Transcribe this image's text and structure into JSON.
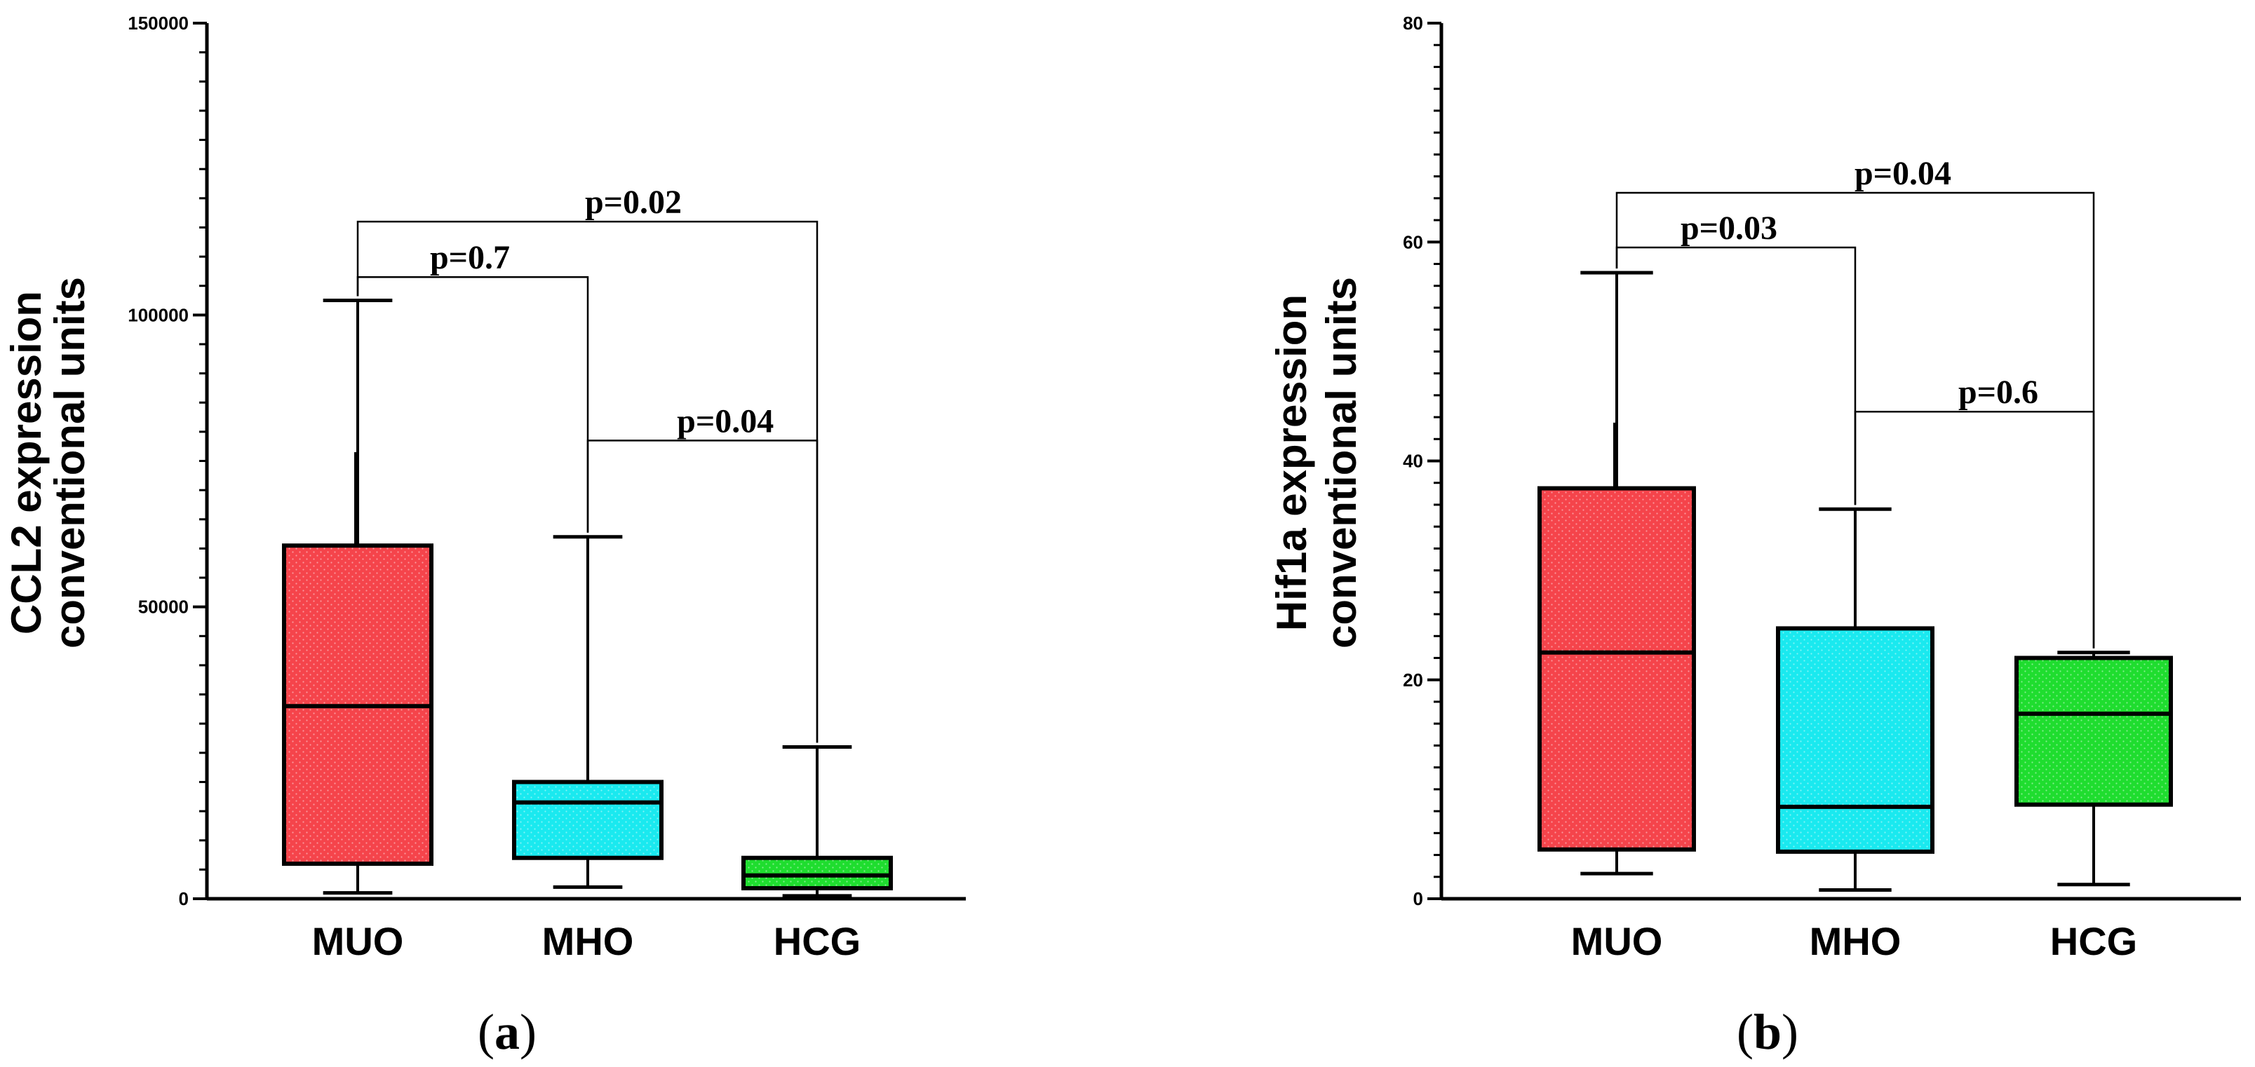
{
  "colors": {
    "MUO": "#f5444b",
    "MHO": "#1ae9ef",
    "HCG": "#1fdd2f",
    "dot": "#ffffff"
  },
  "chart_data": [
    {
      "type": "boxplot",
      "panel_label": "a",
      "ylabel_line1": "CCL2 expression",
      "ylabel_line2": "conventional units",
      "ylim": [
        0,
        150000
      ],
      "yticks": [
        0,
        50000,
        100000,
        150000
      ],
      "ytick_labels": [
        "0",
        "50000",
        "100000",
        "150000"
      ],
      "minor_tick_step": 5000,
      "categories": [
        "MUO",
        "MHO",
        "HCG"
      ],
      "boxes": [
        {
          "name": "MUO",
          "min": 1000,
          "q1": 6000,
          "median": 33000,
          "q3": 60500,
          "max": 102500,
          "outlier_whisker": 76500
        },
        {
          "name": "MHO",
          "min": 2000,
          "q1": 7000,
          "median": 16500,
          "q3": 20000,
          "max": 62000
        },
        {
          "name": "HCG",
          "min": 500,
          "q1": 1800,
          "median": 4000,
          "q3": 7000,
          "max": 26000
        }
      ],
      "comparisons": [
        {
          "from": "MUO",
          "to": "MHO",
          "y": 106500,
          "label": "p=0.7"
        },
        {
          "from": "MUO",
          "to": "HCG",
          "y": 116000,
          "label": "p=0.02"
        },
        {
          "from": "MHO",
          "to": "HCG",
          "y": 78500,
          "label": "p=0.04"
        }
      ]
    },
    {
      "type": "boxplot",
      "panel_label": "b",
      "ylabel_line1": "Hif1a expression",
      "ylabel_line2": "conventional units",
      "ylim": [
        0,
        80
      ],
      "yticks": [
        0,
        20,
        40,
        60,
        80
      ],
      "ytick_labels": [
        "0",
        "20",
        "40",
        "60",
        "80"
      ],
      "minor_tick_step": 2,
      "categories": [
        "MUO",
        "MHO",
        "HCG"
      ],
      "boxes": [
        {
          "name": "MUO",
          "min": 2.3,
          "q1": 4.5,
          "median": 22.5,
          "q3": 37.5,
          "max": 57.2,
          "outlier_whisker": 43.5
        },
        {
          "name": "MHO",
          "min": 0.8,
          "q1": 4.3,
          "median": 8.4,
          "q3": 24.7,
          "max": 35.6
        },
        {
          "name": "HCG",
          "min": 1.3,
          "q1": 8.6,
          "median": 16.9,
          "q3": 22.0,
          "max": 22.5
        }
      ],
      "comparisons": [
        {
          "from": "MUO",
          "to": "MHO",
          "y": 59.5,
          "label": "p=0.03"
        },
        {
          "from": "MUO",
          "to": "HCG",
          "y": 64.5,
          "label": "p=0.04"
        },
        {
          "from": "MHO",
          "to": "HCG",
          "y": 44.5,
          "label": "p=0.6"
        }
      ]
    }
  ]
}
